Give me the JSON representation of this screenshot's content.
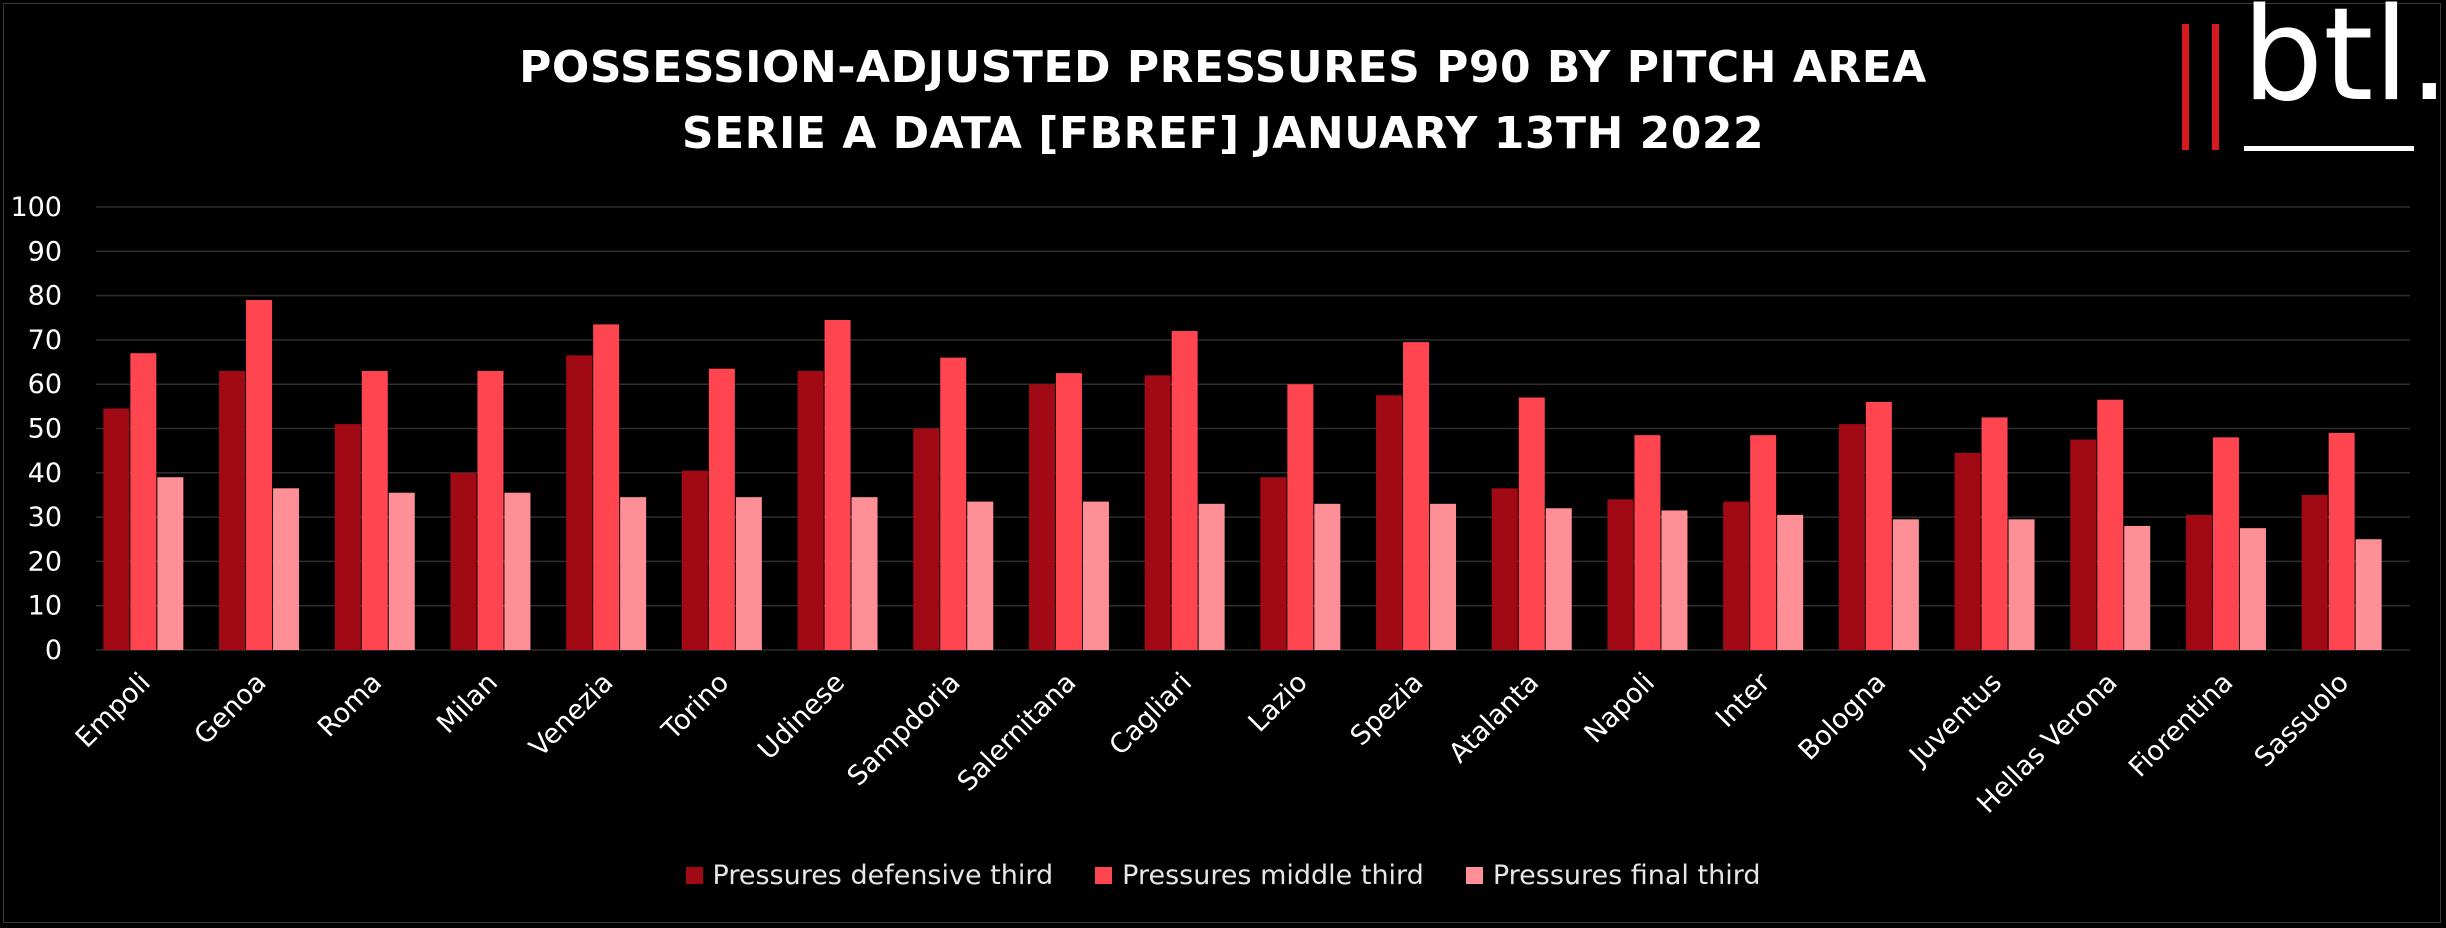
{
  "title_lines": [
    "POSSESSION-ADJUSTED  PRESSURES P90 BY PITCH AREA",
    "SERIE A DATA [FBREF] JANUARY 13TH 2022"
  ],
  "logo_text": "btl.",
  "colors": {
    "background": "#000000",
    "defensive": "#a10a14",
    "middle": "#ff4550",
    "final": "#ff8f96",
    "grid": "#2e2e2e",
    "text": "#ffffff"
  },
  "chart_data": {
    "type": "bar",
    "title": "POSSESSION-ADJUSTED  PRESSURES P90 BY PITCH AREA — SERIE A DATA [FBREF] JANUARY 13TH 2022",
    "xlabel": "",
    "ylabel": "",
    "ylim": [
      0,
      100
    ],
    "yticks": [
      0,
      10,
      20,
      30,
      40,
      50,
      60,
      70,
      80,
      90,
      100
    ],
    "grid": true,
    "legend_position": "bottom",
    "categories": [
      "Empoli",
      "Genoa",
      "Roma",
      "Milan",
      "Venezia",
      "Torino",
      "Udinese",
      "Sampdoria",
      "Salernitana",
      "Cagliari",
      "Lazio",
      "Spezia",
      "Atalanta",
      "Napoli",
      "Inter",
      "Bologna",
      "Juventus",
      "Hellas Verona",
      "Fiorentina",
      "Sassuolo"
    ],
    "series": [
      {
        "name": "Pressures defensive third",
        "color": "#a10a14",
        "values": [
          54.5,
          63.0,
          51.0,
          40.0,
          66.5,
          40.5,
          63.0,
          50.0,
          60.0,
          62.0,
          39.0,
          57.5,
          36.5,
          34.0,
          33.5,
          51.0,
          44.5,
          47.5,
          30.5,
          35.0
        ]
      },
      {
        "name": "Pressures middle third",
        "color": "#ff4550",
        "values": [
          67.0,
          79.0,
          63.0,
          63.0,
          73.5,
          63.5,
          74.5,
          66.0,
          62.5,
          72.0,
          60.0,
          69.5,
          57.0,
          48.5,
          48.5,
          56.0,
          52.5,
          56.5,
          48.0,
          49.0
        ]
      },
      {
        "name": "Pressures final third",
        "color": "#ff8f96",
        "values": [
          39.0,
          36.5,
          35.5,
          35.5,
          34.5,
          34.5,
          34.5,
          33.5,
          33.5,
          33.0,
          33.0,
          33.0,
          32.0,
          31.5,
          30.5,
          29.5,
          29.5,
          28.0,
          27.5,
          25.0
        ]
      }
    ]
  }
}
